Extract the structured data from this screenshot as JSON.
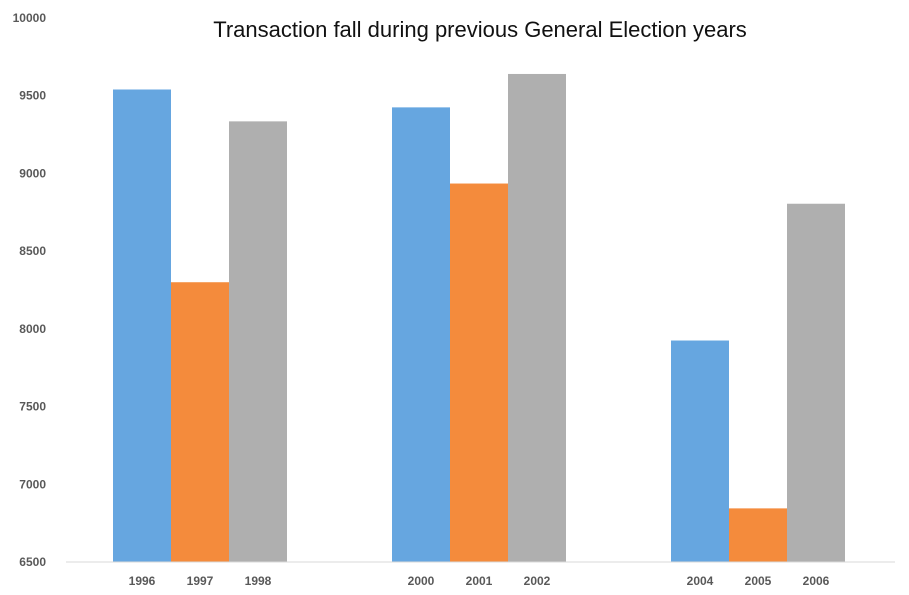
{
  "chart_data": {
    "type": "bar",
    "title": "Transaction fall during previous General Election years",
    "xlabel": "",
    "ylabel": "",
    "ylim": [
      6500,
      10000
    ],
    "yticks": [
      "6500",
      "7000",
      "7500",
      "8000",
      "8500",
      "9000",
      "9500",
      "10000"
    ],
    "grid": false,
    "legend": "none",
    "groups": [
      {
        "bars": [
          {
            "category": "1996",
            "value": 9540,
            "color": "#66a6e0"
          },
          {
            "category": "1997",
            "value": 8300,
            "color": "#f48b3c"
          },
          {
            "category": "1998",
            "value": 9335,
            "color": "#afafaf"
          }
        ]
      },
      {
        "bars": [
          {
            "category": "2000",
            "value": 9425,
            "color": "#66a6e0"
          },
          {
            "category": "2001",
            "value": 8935,
            "color": "#f48b3c"
          },
          {
            "category": "2002",
            "value": 9640,
            "color": "#afafaf"
          }
        ]
      },
      {
        "bars": [
          {
            "category": "2004",
            "value": 7925,
            "color": "#66a6e0"
          },
          {
            "category": "2005",
            "value": 6845,
            "color": "#f48b3c"
          },
          {
            "category": "2006",
            "value": 8805,
            "color": "#afafaf"
          }
        ]
      }
    ]
  }
}
